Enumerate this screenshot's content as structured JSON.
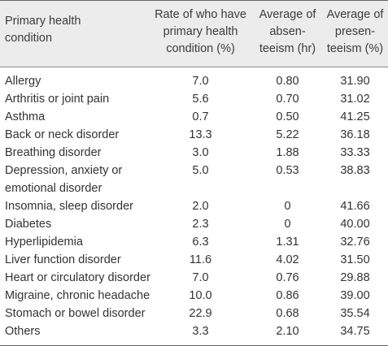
{
  "header": {
    "condition": "Primary health\ncondition",
    "rate": "Rate of who have\nprimary health\ncondition (%)",
    "absenteeism": "Average of\nabsen-\nteeism (hr)",
    "presenteeism": "Average of\npresen-\nteeism (%)"
  },
  "rows": [
    {
      "condition": "Allergy",
      "rate": "7.0",
      "absenteeism": "0.80",
      "presenteeism": "31.90"
    },
    {
      "condition": "Arthritis or joint pain",
      "rate": "5.6",
      "absenteeism": "0.70",
      "presenteeism": "31.02"
    },
    {
      "condition": "Asthma",
      "rate": "0.7",
      "absenteeism": "0.50",
      "presenteeism": "41.25"
    },
    {
      "condition": "Back or neck disorder",
      "rate": "13.3",
      "absenteeism": "5.22",
      "presenteeism": "36.18"
    },
    {
      "condition": "Breathing disorder",
      "rate": "3.0",
      "absenteeism": "1.88",
      "presenteeism": "33.33"
    },
    {
      "condition": "Depression, anxiety or\n  emotional disorder",
      "rate": "5.0",
      "absenteeism": "0.53",
      "presenteeism": "38.83"
    },
    {
      "condition": "Insomnia, sleep disorder",
      "rate": "2.0",
      "absenteeism": "0",
      "presenteeism": "41.66"
    },
    {
      "condition": "Diabetes",
      "rate": "2.3",
      "absenteeism": "0",
      "presenteeism": "40.00"
    },
    {
      "condition": "Hyperlipidemia",
      "rate": "6.3",
      "absenteeism": "1.31",
      "presenteeism": "32.76"
    },
    {
      "condition": "Liver function disorder",
      "rate": "11.6",
      "absenteeism": "4.02",
      "presenteeism": "31.50"
    },
    {
      "condition": "Heart or circulatory disorder",
      "rate": "7.0",
      "absenteeism": "0.76",
      "presenteeism": "29.88"
    },
    {
      "condition": "Migraine, chronic headache",
      "rate": "10.0",
      "absenteeism": "0.86",
      "presenteeism": "39.00"
    },
    {
      "condition": "Stomach or bowel disorder",
      "rate": "22.9",
      "absenteeism": "0.68",
      "presenteeism": "35.54"
    },
    {
      "condition": "Others",
      "rate": "3.3",
      "absenteeism": "2.10",
      "presenteeism": "34.75"
    }
  ]
}
